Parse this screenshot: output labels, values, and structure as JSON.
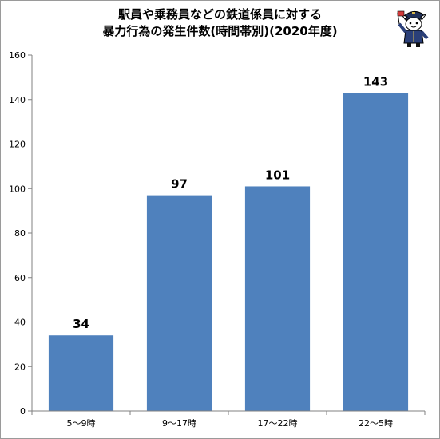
{
  "chart_data": {
    "type": "bar",
    "title_lines": [
      "駅員や乗務員などの鉄道係員に対する",
      "暴力行為の発生件数(時間帯別)(2020年度)"
    ],
    "categories": [
      "5〜9時",
      "9〜17時",
      "17〜22時",
      "22〜5時"
    ],
    "values": [
      34,
      97,
      101,
      143
    ],
    "data_labels": [
      "34",
      "97",
      "101",
      "143"
    ],
    "ylim": [
      0,
      160
    ],
    "yticks": [
      0,
      20,
      40,
      60,
      80,
      100,
      120,
      140,
      160
    ],
    "grid": false,
    "legend": "none",
    "bar_color": "#4f81bd"
  }
}
